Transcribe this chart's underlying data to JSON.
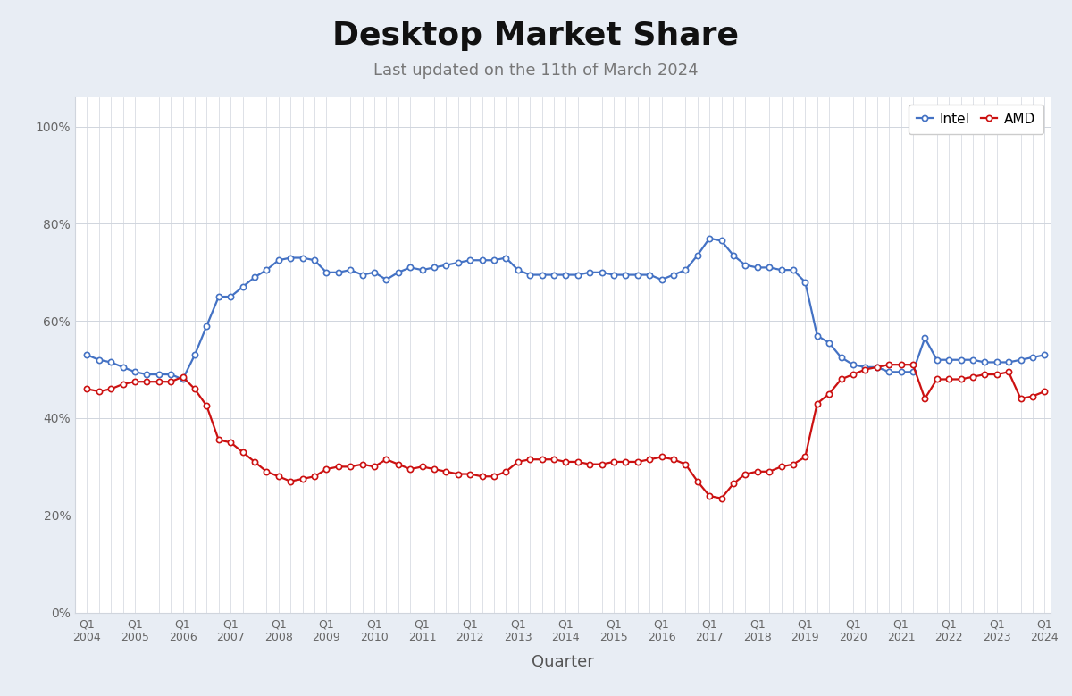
{
  "title": "Desktop Market Share",
  "subtitle": "Last updated on the 11th of March 2024",
  "xlabel": "Quarter",
  "fig_background": "#e8edf4",
  "plot_background": "#ffffff",
  "intel_color": "#4472c4",
  "amd_color": "#cc1111",
  "intel_label": "Intel",
  "amd_label": "AMD",
  "intel": [
    53.0,
    52.0,
    51.5,
    50.5,
    49.5,
    49.0,
    49.0,
    49.0,
    48.0,
    53.0,
    59.0,
    65.0,
    65.0,
    67.0,
    69.0,
    70.5,
    72.5,
    73.0,
    73.0,
    72.5,
    70.0,
    70.0,
    70.5,
    69.5,
    70.0,
    68.5,
    70.0,
    71.0,
    70.5,
    71.0,
    71.5,
    72.0,
    72.5,
    72.5,
    72.5,
    73.0,
    70.5,
    69.5,
    69.5,
    69.5,
    69.5,
    69.5,
    70.0,
    70.0,
    69.5,
    69.5,
    69.5,
    69.5,
    68.5,
    69.5,
    70.5,
    73.5,
    77.0,
    76.5,
    73.5,
    71.5,
    71.0,
    71.0,
    70.5,
    70.5,
    68.0,
    57.0,
    55.5,
    52.5,
    51.0,
    50.5,
    50.5,
    49.5,
    49.5,
    49.5,
    56.5,
    52.0,
    52.0,
    52.0,
    52.0,
    51.5,
    51.5,
    51.5,
    52.0,
    52.5,
    53.0
  ],
  "amd": [
    46.0,
    45.5,
    46.0,
    47.0,
    47.5,
    47.5,
    47.5,
    47.5,
    48.5,
    46.0,
    42.5,
    35.5,
    35.0,
    33.0,
    31.0,
    29.0,
    28.0,
    27.0,
    27.5,
    28.0,
    29.5,
    30.0,
    30.0,
    30.5,
    30.0,
    31.5,
    30.5,
    29.5,
    30.0,
    29.5,
    29.0,
    28.5,
    28.5,
    28.0,
    28.0,
    29.0,
    31.0,
    31.5,
    31.5,
    31.5,
    31.0,
    31.0,
    30.5,
    30.5,
    31.0,
    31.0,
    31.0,
    31.5,
    32.0,
    31.5,
    30.5,
    27.0,
    24.0,
    23.5,
    26.5,
    28.5,
    29.0,
    29.0,
    30.0,
    30.5,
    32.0,
    43.0,
    45.0,
    48.0,
    49.0,
    50.0,
    50.5,
    51.0,
    51.0,
    51.0,
    44.0,
    48.0,
    48.0,
    48.0,
    48.5,
    49.0,
    49.0,
    49.5,
    44.0,
    44.5,
    45.5
  ],
  "years": [
    2004,
    2005,
    2006,
    2007,
    2008,
    2009,
    2010,
    2011,
    2012,
    2013,
    2014,
    2015,
    2016,
    2017,
    2018,
    2019,
    2020,
    2021,
    2022,
    2023,
    2024
  ],
  "yticks": [
    0,
    20,
    40,
    60,
    80,
    100
  ],
  "ylim": [
    0,
    106
  ],
  "title_fontsize": 26,
  "subtitle_fontsize": 13,
  "xlabel_fontsize": 13,
  "tick_fontsize": 10,
  "legend_fontsize": 11
}
